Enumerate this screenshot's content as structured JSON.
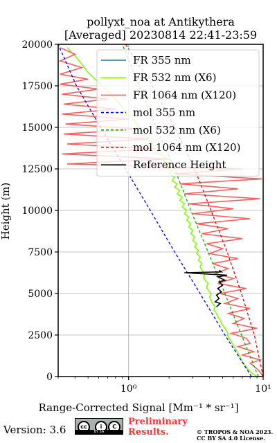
{
  "header": {
    "title_line1": "pollyxt_noa at Antikythera",
    "title_line2": "[Averaged] 20230814 22:41-23:59"
  },
  "footer": {
    "version": "Version: 3.6",
    "preliminary_line1": "Preliminary",
    "preliminary_line2": "Results.",
    "license_line1": "© TROPOS & NOA 2023.",
    "license_line2": "CC BY SA 4.0 License.",
    "cc_badge_text": "BY   SA"
  },
  "chart_data": {
    "type": "line",
    "title": "pollyxt_noa at Antikythera [Averaged] 20230814 22:41-23:59",
    "xlabel": "Range-Corrected Signal [Mm⁻¹ * sr⁻¹]",
    "ylabel": "Height (m)",
    "xscale": "log",
    "xlim": [
      0.3,
      10
    ],
    "ylim": [
      0,
      20000
    ],
    "x_ticks": [
      {
        "value": 1,
        "label": "10⁰"
      },
      {
        "value": 10,
        "label": "10¹"
      }
    ],
    "y_ticks": [
      0,
      2500,
      5000,
      7500,
      10000,
      12500,
      15000,
      17500,
      20000
    ],
    "grid": true,
    "legend_position": "top-right",
    "colors": {
      "fr355": "#1f77b4",
      "fr532": "#80ff00",
      "fr1064": "#ff5c5c",
      "mol355": "#0000ff",
      "mol532": "#00b000",
      "mol1064": "#e00000",
      "ref": "#000000"
    },
    "series": [
      {
        "name": "FR 355 nm",
        "key": "fr355",
        "style": "solid",
        "points": []
      },
      {
        "name": "FR 532 nm (X6)",
        "key": "fr532",
        "style": "solid",
        "points": [
          [
            9.0,
            0
          ],
          [
            8.4,
            150
          ],
          [
            8.0,
            300
          ],
          [
            7.6,
            500
          ],
          [
            7.3,
            700
          ],
          [
            7.0,
            900
          ],
          [
            6.8,
            1100
          ],
          [
            6.6,
            1300
          ],
          [
            6.4,
            1500
          ],
          [
            6.2,
            1700
          ],
          [
            6.0,
            1900
          ],
          [
            5.8,
            2100
          ],
          [
            5.6,
            2300
          ],
          [
            5.4,
            2500
          ],
          [
            5.5,
            2600
          ],
          [
            5.3,
            2800
          ],
          [
            5.1,
            3000
          ],
          [
            4.9,
            3200
          ],
          [
            4.8,
            3400
          ],
          [
            4.6,
            3600
          ],
          [
            4.5,
            3800
          ],
          [
            4.3,
            4000
          ],
          [
            4.4,
            4200
          ],
          [
            4.2,
            4400
          ],
          [
            4.1,
            4600
          ],
          [
            4.0,
            4800
          ],
          [
            4.1,
            5000
          ],
          [
            3.9,
            5200
          ],
          [
            3.8,
            5400
          ],
          [
            3.9,
            5600
          ],
          [
            3.7,
            5800
          ],
          [
            3.6,
            6000
          ],
          [
            3.7,
            6200
          ],
          [
            3.5,
            6400
          ],
          [
            3.4,
            6600
          ],
          [
            3.5,
            6800
          ],
          [
            3.3,
            7000
          ],
          [
            3.4,
            7200
          ],
          [
            3.2,
            7400
          ],
          [
            3.3,
            7600
          ],
          [
            3.1,
            7800
          ],
          [
            3.2,
            8000
          ],
          [
            3.0,
            8200
          ],
          [
            3.1,
            8400
          ],
          [
            2.9,
            8600
          ],
          [
            3.0,
            8800
          ],
          [
            2.8,
            9000
          ],
          [
            2.9,
            9200
          ],
          [
            2.7,
            9400
          ],
          [
            2.8,
            9600
          ],
          [
            2.6,
            9800
          ],
          [
            2.7,
            10000
          ],
          [
            2.5,
            10200
          ],
          [
            2.6,
            10400
          ],
          [
            2.4,
            10600
          ],
          [
            2.5,
            10800
          ],
          [
            2.3,
            11000
          ],
          [
            2.4,
            11200
          ],
          [
            2.2,
            11400
          ],
          [
            2.3,
            11600
          ],
          [
            2.1,
            11800
          ],
          [
            2.2,
            12000
          ],
          [
            2.0,
            12200
          ],
          [
            2.1,
            12400
          ],
          [
            1.9,
            12600
          ],
          [
            2.0,
            12800
          ],
          [
            1.8,
            13000
          ],
          [
            1.9,
            13200
          ],
          [
            1.7,
            13400
          ],
          [
            1.6,
            13700
          ],
          [
            1.5,
            14000
          ],
          [
            1.4,
            14300
          ],
          [
            1.3,
            14600
          ],
          [
            1.2,
            15000
          ],
          [
            1.1,
            15400
          ],
          [
            1.0,
            15800
          ],
          [
            0.9,
            16200
          ],
          [
            0.8,
            16700
          ],
          [
            0.7,
            17200
          ],
          [
            0.6,
            17700
          ],
          [
            0.5,
            18300
          ],
          [
            0.45,
            18800
          ],
          [
            0.4,
            19300
          ],
          [
            0.35,
            19800
          ]
        ]
      },
      {
        "name": "FR 1064 nm (X120)",
        "key": "fr1064",
        "style": "solid",
        "points": [
          [
            10,
            0
          ],
          [
            9.2,
            400
          ],
          [
            8.0,
            800
          ],
          [
            9.5,
            1000
          ],
          [
            7.0,
            1300
          ],
          [
            8.5,
            1500
          ],
          [
            6.5,
            1800
          ],
          [
            8.0,
            2000
          ],
          [
            7.5,
            2300
          ],
          [
            5.8,
            2600
          ],
          [
            9.0,
            2900
          ],
          [
            6.0,
            3200
          ],
          [
            7.2,
            3500
          ],
          [
            5.5,
            3800
          ],
          [
            8.0,
            4100
          ],
          [
            5.2,
            4400
          ],
          [
            6.5,
            4700
          ],
          [
            4.8,
            5000
          ],
          [
            7.5,
            5300
          ],
          [
            4.6,
            5600
          ],
          [
            6.0,
            5900
          ],
          [
            4.4,
            6200
          ],
          [
            5.5,
            6500
          ],
          [
            4.2,
            6800
          ],
          [
            6.5,
            7100
          ],
          [
            4.0,
            7400
          ],
          [
            5.0,
            7700
          ],
          [
            3.8,
            8000
          ],
          [
            7.0,
            8300
          ],
          [
            3.5,
            8600
          ],
          [
            5.5,
            8900
          ],
          [
            3.2,
            9200
          ],
          [
            8.0,
            9500
          ],
          [
            3.0,
            9800
          ],
          [
            6.0,
            10100
          ],
          [
            2.8,
            10400
          ],
          [
            9.5,
            10700
          ],
          [
            2.6,
            11000
          ],
          [
            6.5,
            11300
          ],
          [
            2.4,
            11600
          ],
          [
            9.8,
            11900
          ],
          [
            2.2,
            12200
          ],
          [
            7.0,
            12500
          ],
          [
            0.35,
            12800
          ],
          [
            2.0,
            13100
          ],
          [
            0.32,
            13400
          ],
          [
            1.6,
            13700
          ],
          [
            0.35,
            14000
          ],
          [
            1.4,
            14300
          ],
          [
            0.33,
            14600
          ],
          [
            1.2,
            14900
          ],
          [
            0.34,
            15200
          ],
          [
            1.0,
            15500
          ],
          [
            0.32,
            15800
          ],
          [
            0.8,
            16100
          ],
          [
            0.33,
            16400
          ],
          [
            0.7,
            16700
          ],
          [
            0.32,
            17000
          ],
          [
            0.6,
            17300
          ],
          [
            0.31,
            17600
          ],
          [
            0.5,
            17900
          ],
          [
            0.31,
            18200
          ],
          [
            0.45,
            18600
          ],
          [
            0.31,
            19000
          ],
          [
            0.4,
            19400
          ],
          [
            0.31,
            19800
          ]
        ]
      },
      {
        "name": "mol 355 nm",
        "key": "mol355",
        "style": "dashed",
        "points": [
          [
            8.2,
            0
          ],
          [
            5.2,
            2500
          ],
          [
            3.4,
            5000
          ],
          [
            2.2,
            7500
          ],
          [
            1.45,
            10000
          ],
          [
            0.95,
            12500
          ],
          [
            0.62,
            15000
          ],
          [
            0.41,
            17500
          ],
          [
            0.28,
            20000
          ]
        ]
      },
      {
        "name": "mol 532 nm (X6)",
        "key": "mol532",
        "style": "dashed",
        "points": [
          [
            9.2,
            0
          ],
          [
            6.9,
            2500
          ],
          [
            5.2,
            5000
          ],
          [
            3.9,
            7500
          ],
          [
            2.9,
            10000
          ],
          [
            2.2,
            12500
          ],
          [
            1.6,
            15000
          ],
          [
            1.2,
            17500
          ],
          [
            0.9,
            20000
          ]
        ]
      },
      {
        "name": "mol 1064 nm (X120)",
        "key": "mol1064",
        "style": "dashed",
        "points": [
          [
            10.5,
            0
          ],
          [
            8.6,
            2500
          ],
          [
            6.9,
            5000
          ],
          [
            5.4,
            7500
          ],
          [
            4.1,
            10000
          ],
          [
            3.1,
            12500
          ],
          [
            2.2,
            15000
          ],
          [
            1.5,
            17500
          ],
          [
            0.95,
            20000
          ]
        ]
      },
      {
        "name": "Reference Height",
        "key": "ref",
        "style": "solid",
        "points": [
          [
            4.5,
            4200
          ],
          [
            4.8,
            4400
          ],
          [
            4.4,
            4500
          ],
          [
            4.7,
            4700
          ],
          [
            4.5,
            4900
          ],
          [
            4.9,
            5100
          ],
          [
            4.6,
            5300
          ],
          [
            5.0,
            5500
          ],
          [
            4.7,
            5700
          ],
          [
            5.2,
            5800
          ],
          [
            4.6,
            6000
          ],
          [
            5.4,
            6100
          ],
          [
            2.6,
            6250
          ],
          [
            4.9,
            6300
          ],
          [
            4.7,
            6400
          ]
        ]
      }
    ]
  }
}
